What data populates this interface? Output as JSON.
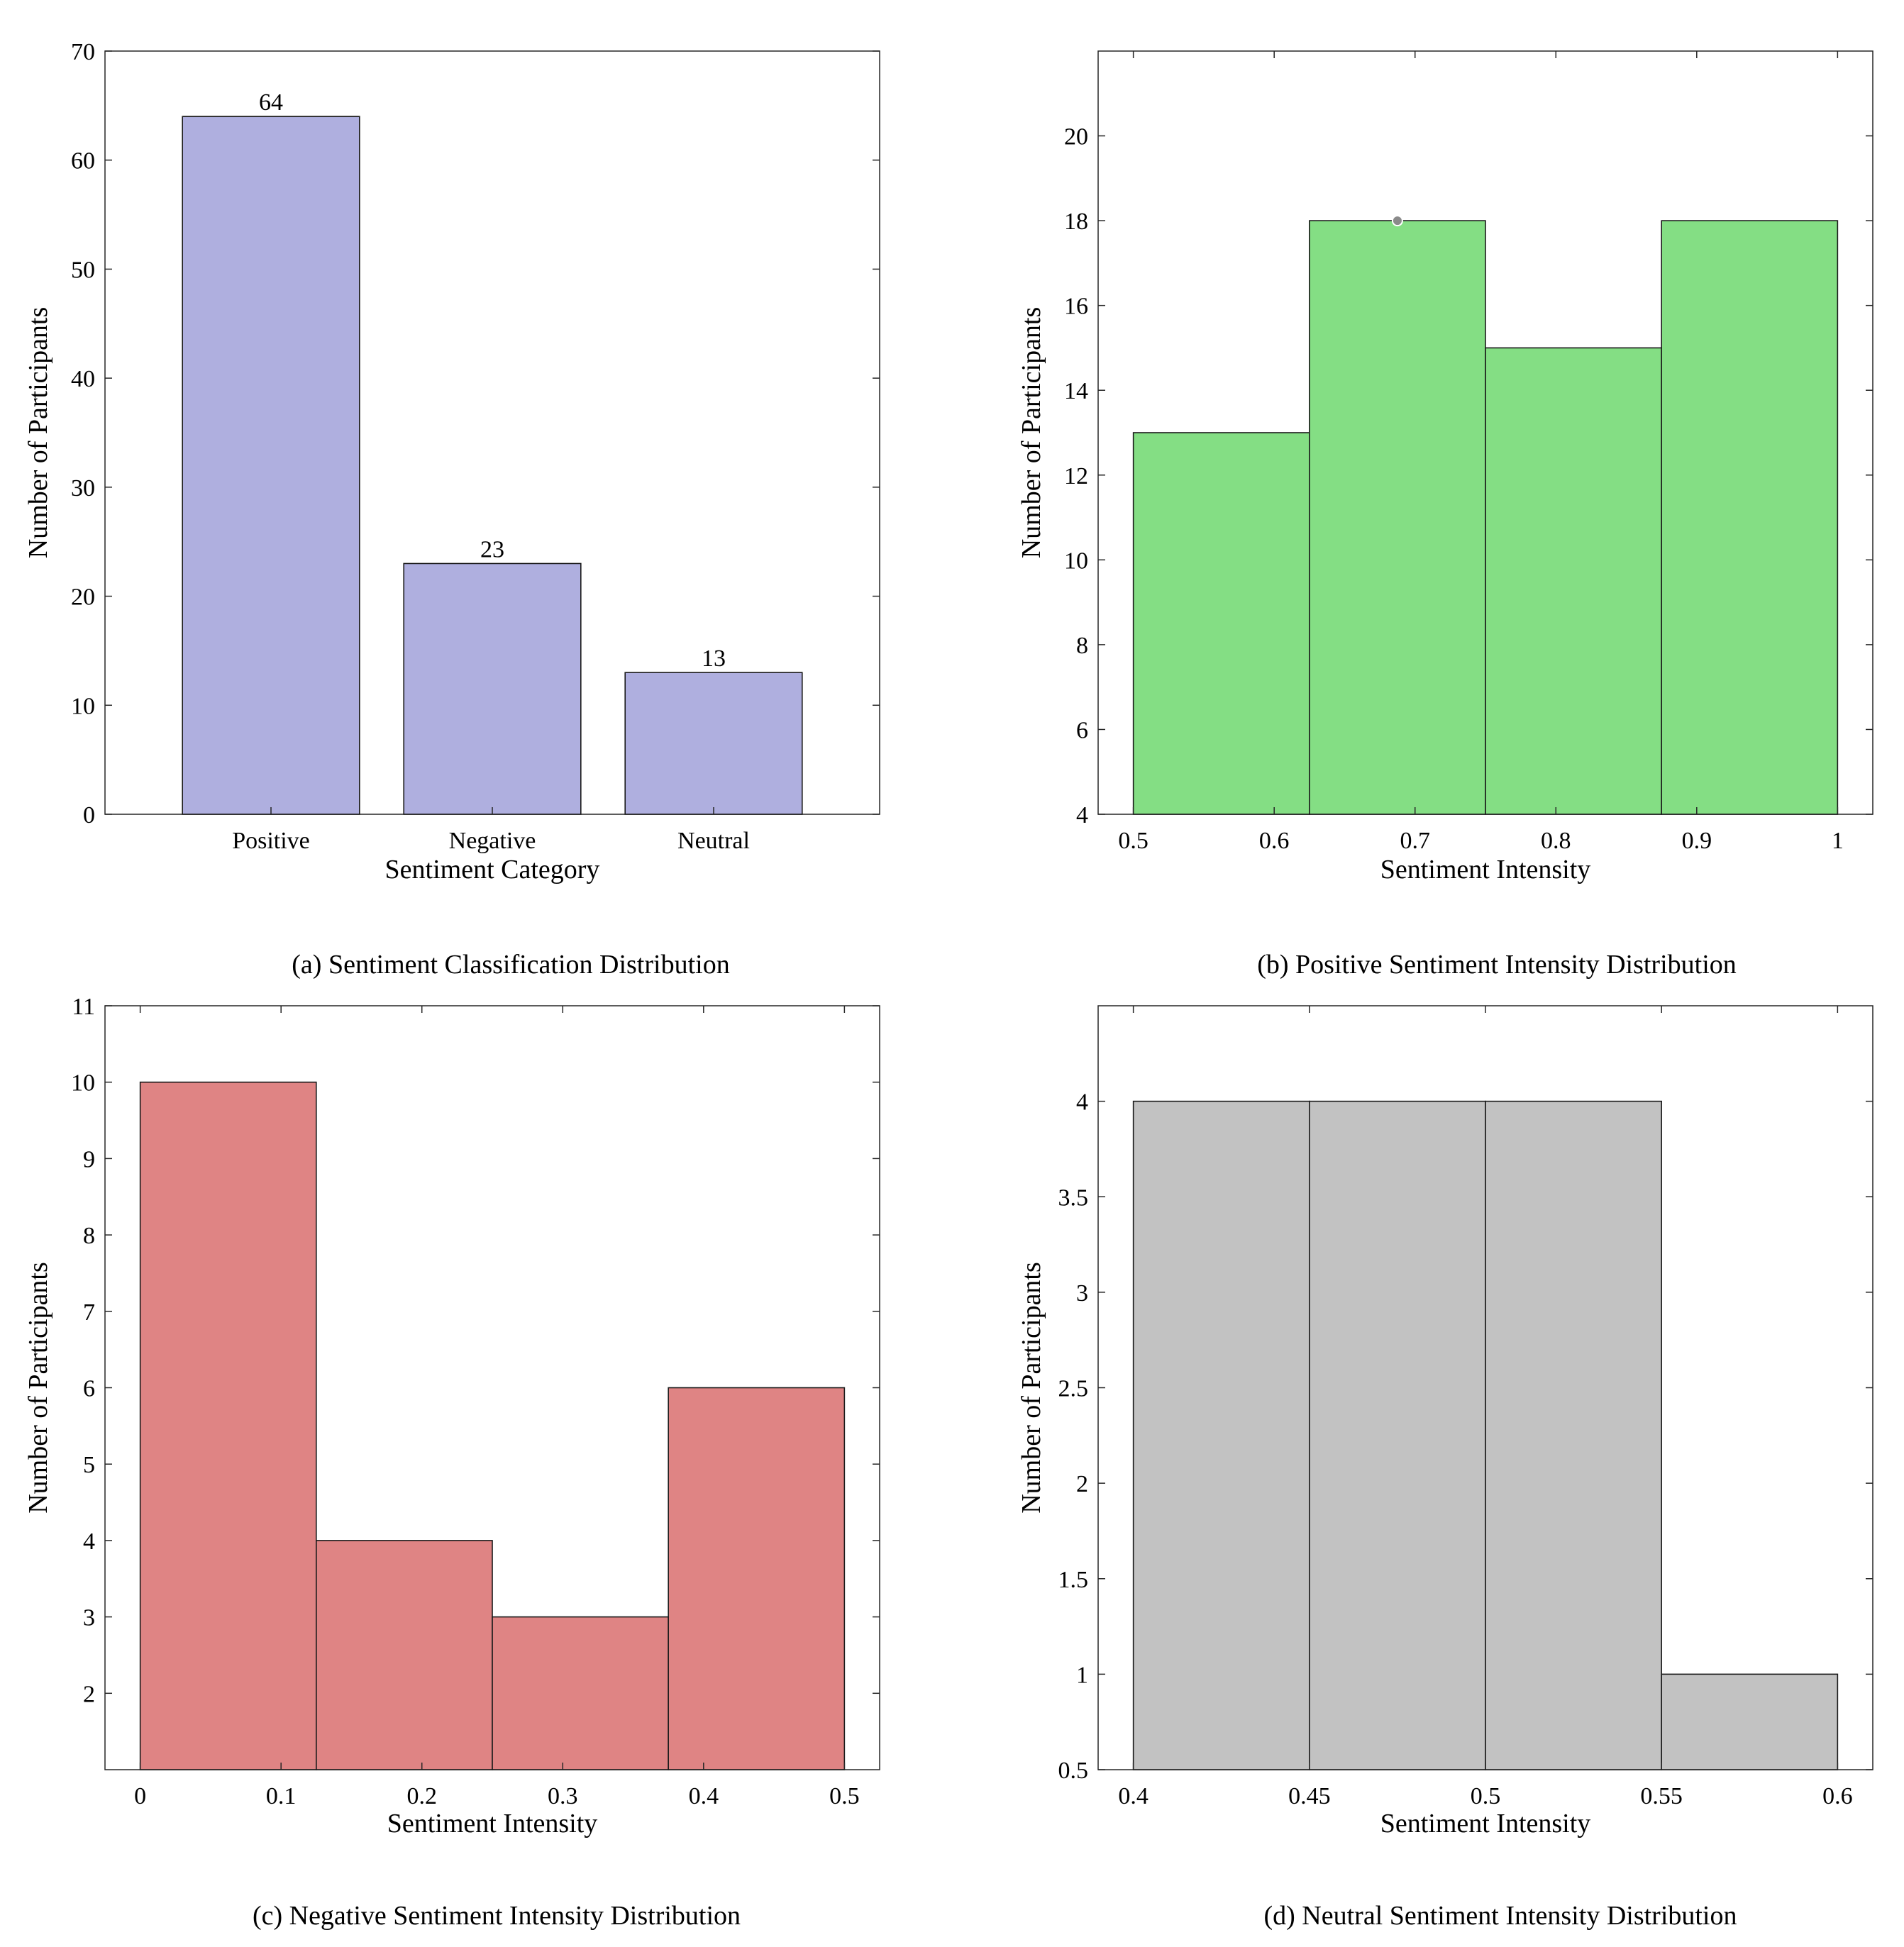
{
  "chart_data": [
    {
      "type": "bar",
      "caption": "(a) Sentiment Classification Distribution",
      "categories": [
        "Positive",
        "Negative",
        "Neutral"
      ],
      "values": [
        64,
        23,
        13
      ],
      "data_labels": [
        "64",
        "23",
        "13"
      ],
      "xlabel": "Sentiment Category",
      "ylabel": "Number of Participants",
      "ylim": [
        0,
        70
      ],
      "yticks": [
        0,
        10,
        20,
        30,
        40,
        50,
        60,
        70
      ],
      "bar_color": "#afafdf",
      "grid": false
    },
    {
      "type": "bar",
      "subtype": "histogram",
      "caption": "(b) Positive Sentiment Intensity Distribution",
      "bin_edges": [
        0.5,
        0.625,
        0.75,
        0.875,
        1.0
      ],
      "counts": [
        13,
        18,
        15,
        18
      ],
      "xlabel": "Sentiment Intensity",
      "ylabel": "Number of Participants",
      "xlim": [
        0.475,
        1.025
      ],
      "ylim": [
        4,
        22
      ],
      "xticks": [
        0.5,
        0.6,
        0.7,
        0.8,
        0.9,
        1
      ],
      "xtick_labels": [
        "0.5",
        "0.6",
        "0.7",
        "0.8",
        "0.9",
        "1"
      ],
      "yticks": [
        4,
        6,
        8,
        10,
        12,
        14,
        16,
        18,
        20
      ],
      "bar_color": "#84de84",
      "marker": {
        "x": 0.6875,
        "y": 18
      },
      "grid": false
    },
    {
      "type": "bar",
      "subtype": "histogram",
      "caption": "(c) Negative Sentiment Intensity Distribution",
      "bin_edges": [
        0,
        0.125,
        0.25,
        0.375,
        0.5
      ],
      "counts": [
        10,
        4,
        3,
        6
      ],
      "xlabel": "Sentiment Intensity",
      "ylabel": "Number of Participants",
      "xlim": [
        -0.025,
        0.525
      ],
      "ylim": [
        1,
        11
      ],
      "xticks": [
        0,
        0.1,
        0.2,
        0.3,
        0.4,
        0.5
      ],
      "xtick_labels": [
        "0",
        "0.1",
        "0.2",
        "0.3",
        "0.4",
        "0.5"
      ],
      "yticks": [
        2,
        3,
        4,
        5,
        6,
        7,
        8,
        9,
        10,
        11
      ],
      "bar_color": "#df8484",
      "grid": false
    },
    {
      "type": "bar",
      "subtype": "histogram",
      "caption": "(d) Neutral Sentiment Intensity Distribution",
      "bin_edges": [
        0.4,
        0.45,
        0.5,
        0.55,
        0.6
      ],
      "counts": [
        4,
        4,
        4,
        1
      ],
      "xlabel": "Sentiment Intensity",
      "ylabel": "Number of Participants",
      "xlim": [
        0.39,
        0.61
      ],
      "ylim": [
        0.5,
        4.5
      ],
      "xticks": [
        0.4,
        0.45,
        0.5,
        0.55,
        0.6
      ],
      "xtick_labels": [
        "0.4",
        "0.45",
        "0.5",
        "0.55",
        "0.6"
      ],
      "yticks": [
        0.5,
        1,
        1.5,
        2,
        2.5,
        3,
        3.5,
        4
      ],
      "ytick_labels": [
        "0.5",
        "1",
        "1.5",
        "2",
        "2.5",
        "3",
        "3.5",
        "4"
      ],
      "bar_color": "#c2c2c2",
      "grid": false
    }
  ]
}
